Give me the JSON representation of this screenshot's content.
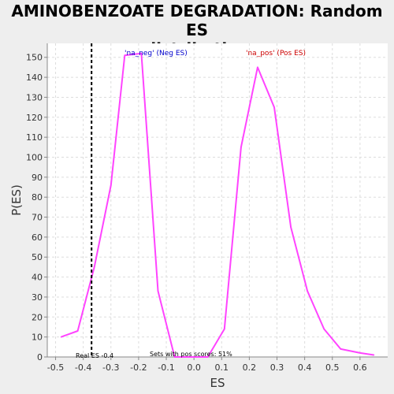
{
  "chart_data": {
    "type": "line",
    "title_line1": "AMINOBENZOATE DEGRADATION: Random ES",
    "title_line2": "distribution",
    "xlabel": "ES",
    "ylabel": "P(ES)",
    "xlim": [
      -0.53,
      0.7
    ],
    "ylim": [
      0,
      157
    ],
    "x_ticks": [
      -0.5,
      -0.4,
      -0.3,
      -0.2,
      -0.1,
      0.0,
      0.1,
      0.2,
      0.3,
      0.4,
      0.5,
      0.6
    ],
    "x_tick_labels": [
      "-0.5",
      "-0.4",
      "-0.3",
      "-0.2",
      "-0.1",
      "0.0",
      "0.1",
      "0.2",
      "0.3",
      "0.4",
      "0.5",
      "0.6"
    ],
    "y_ticks": [
      0,
      10,
      20,
      30,
      40,
      50,
      60,
      70,
      80,
      90,
      100,
      110,
      120,
      130,
      140,
      150
    ],
    "y_tick_labels": [
      "0",
      "10",
      "20",
      "30",
      "40",
      "50",
      "60",
      "70",
      "80",
      "90",
      "100",
      "110",
      "120",
      "130",
      "140",
      "150"
    ],
    "grid": true,
    "series": [
      {
        "color": "#ff44ff",
        "x": [
          -0.48,
          -0.42,
          -0.36,
          -0.3,
          -0.25,
          -0.19,
          -0.13,
          -0.07,
          0.0,
          0.05,
          0.11,
          0.17,
          0.23,
          0.29,
          0.35,
          0.41,
          0.47,
          0.53,
          0.6,
          0.65
        ],
        "y": [
          10,
          13,
          45,
          86,
          151,
          152,
          33,
          0,
          0,
          0,
          14,
          105,
          145,
          125,
          65,
          33,
          14,
          4,
          2,
          1
        ]
      }
    ],
    "real_es_line": {
      "x": -0.37,
      "color": "#000000",
      "style": "dashed"
    },
    "annotations": {
      "neg_label": {
        "text": "'na_neg' (Neg ES)",
        "color": "#0000cc"
      },
      "pos_label": {
        "text": "'na_pos' (Pos ES)",
        "color": "#cc0000"
      },
      "real_es_label": {
        "text": "Real ES -0.4"
      },
      "sets_label": {
        "text": "Sets with pos scores: 51%"
      }
    },
    "colors": {
      "plot_background": "#ffffff",
      "page_background": "#eeeeee",
      "grid": "#dddddd"
    }
  }
}
